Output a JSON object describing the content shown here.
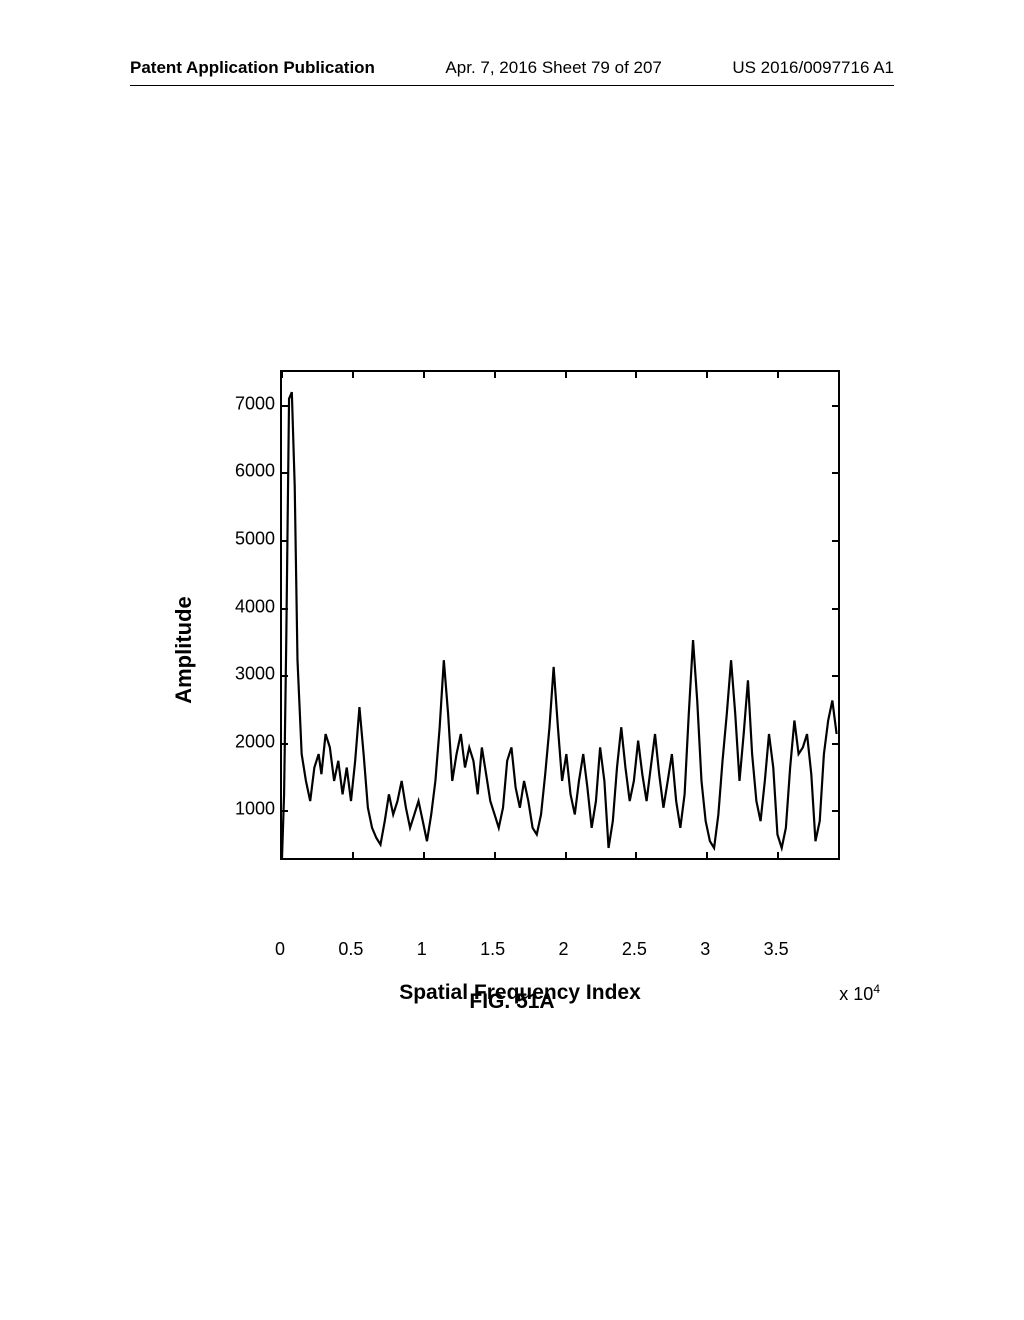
{
  "header": {
    "left": "Patent Application Publication",
    "center": "Apr. 7, 2016  Sheet 79 of 207",
    "right": "US 2016/0097716 A1"
  },
  "chart": {
    "type": "line",
    "y_label": "Amplitude",
    "x_label": "Spatial Frequency Index",
    "x_multiplier": "x 10",
    "x_multiplier_sup": "4",
    "y_ticks": [
      1000,
      2000,
      3000,
      4000,
      5000,
      6000,
      7000
    ],
    "x_ticks": [
      0,
      0.5,
      1,
      1.5,
      2,
      2.5,
      3,
      3.5
    ],
    "y_range": [
      250,
      7500
    ],
    "x_range": [
      0,
      3.95
    ],
    "line_color": "#000000",
    "line_width": 2.2,
    "background": "#ffffff",
    "border_color": "#000000",
    "data": [
      [
        0,
        250
      ],
      [
        0.015,
        1200
      ],
      [
        0.03,
        3500
      ],
      [
        0.05,
        7100
      ],
      [
        0.07,
        7200
      ],
      [
        0.09,
        5800
      ],
      [
        0.11,
        3200
      ],
      [
        0.14,
        1800
      ],
      [
        0.17,
        1400
      ],
      [
        0.2,
        1100
      ],
      [
        0.23,
        1600
      ],
      [
        0.26,
        1800
      ],
      [
        0.28,
        1500
      ],
      [
        0.31,
        2100
      ],
      [
        0.34,
        1900
      ],
      [
        0.37,
        1400
      ],
      [
        0.4,
        1700
      ],
      [
        0.43,
        1200
      ],
      [
        0.46,
        1600
      ],
      [
        0.49,
        1100
      ],
      [
        0.52,
        1700
      ],
      [
        0.55,
        2500
      ],
      [
        0.58,
        1800
      ],
      [
        0.61,
        1000
      ],
      [
        0.64,
        700
      ],
      [
        0.67,
        550
      ],
      [
        0.7,
        450
      ],
      [
        0.73,
        800
      ],
      [
        0.76,
        1200
      ],
      [
        0.79,
        900
      ],
      [
        0.82,
        1100
      ],
      [
        0.85,
        1400
      ],
      [
        0.88,
        1000
      ],
      [
        0.91,
        700
      ],
      [
        0.94,
        900
      ],
      [
        0.97,
        1100
      ],
      [
        1.0,
        800
      ],
      [
        1.03,
        500
      ],
      [
        1.06,
        900
      ],
      [
        1.09,
        1400
      ],
      [
        1.12,
        2200
      ],
      [
        1.15,
        3200
      ],
      [
        1.18,
        2400
      ],
      [
        1.21,
        1400
      ],
      [
        1.24,
        1800
      ],
      [
        1.27,
        2100
      ],
      [
        1.3,
        1600
      ],
      [
        1.33,
        1900
      ],
      [
        1.36,
        1700
      ],
      [
        1.39,
        1200
      ],
      [
        1.42,
        1900
      ],
      [
        1.45,
        1500
      ],
      [
        1.48,
        1100
      ],
      [
        1.51,
        900
      ],
      [
        1.54,
        700
      ],
      [
        1.57,
        1000
      ],
      [
        1.6,
        1700
      ],
      [
        1.63,
        1900
      ],
      [
        1.66,
        1300
      ],
      [
        1.69,
        1000
      ],
      [
        1.72,
        1400
      ],
      [
        1.75,
        1100
      ],
      [
        1.78,
        700
      ],
      [
        1.81,
        600
      ],
      [
        1.84,
        900
      ],
      [
        1.87,
        1500
      ],
      [
        1.9,
        2200
      ],
      [
        1.93,
        3100
      ],
      [
        1.96,
        2200
      ],
      [
        1.99,
        1400
      ],
      [
        2.02,
        1800
      ],
      [
        2.05,
        1200
      ],
      [
        2.08,
        900
      ],
      [
        2.11,
        1400
      ],
      [
        2.14,
        1800
      ],
      [
        2.17,
        1300
      ],
      [
        2.2,
        700
      ],
      [
        2.23,
        1100
      ],
      [
        2.26,
        1900
      ],
      [
        2.29,
        1400
      ],
      [
        2.32,
        400
      ],
      [
        2.35,
        800
      ],
      [
        2.38,
        1600
      ],
      [
        2.41,
        2200
      ],
      [
        2.44,
        1600
      ],
      [
        2.47,
        1100
      ],
      [
        2.5,
        1400
      ],
      [
        2.53,
        2000
      ],
      [
        2.56,
        1500
      ],
      [
        2.59,
        1100
      ],
      [
        2.62,
        1600
      ],
      [
        2.65,
        2100
      ],
      [
        2.68,
        1500
      ],
      [
        2.71,
        1000
      ],
      [
        2.74,
        1400
      ],
      [
        2.77,
        1800
      ],
      [
        2.8,
        1100
      ],
      [
        2.83,
        700
      ],
      [
        2.86,
        1200
      ],
      [
        2.89,
        2400
      ],
      [
        2.92,
        3500
      ],
      [
        2.95,
        2600
      ],
      [
        2.98,
        1400
      ],
      [
        3.01,
        800
      ],
      [
        3.04,
        500
      ],
      [
        3.07,
        400
      ],
      [
        3.1,
        900
      ],
      [
        3.13,
        1700
      ],
      [
        3.16,
        2400
      ],
      [
        3.19,
        3200
      ],
      [
        3.22,
        2400
      ],
      [
        3.25,
        1400
      ],
      [
        3.28,
        2100
      ],
      [
        3.31,
        2900
      ],
      [
        3.34,
        1800
      ],
      [
        3.37,
        1100
      ],
      [
        3.4,
        800
      ],
      [
        3.43,
        1400
      ],
      [
        3.46,
        2100
      ],
      [
        3.49,
        1600
      ],
      [
        3.52,
        600
      ],
      [
        3.55,
        400
      ],
      [
        3.58,
        700
      ],
      [
        3.61,
        1600
      ],
      [
        3.64,
        2300
      ],
      [
        3.67,
        1800
      ],
      [
        3.7,
        1900
      ],
      [
        3.73,
        2100
      ],
      [
        3.76,
        1500
      ],
      [
        3.79,
        500
      ],
      [
        3.82,
        800
      ],
      [
        3.85,
        1800
      ],
      [
        3.88,
        2300
      ],
      [
        3.91,
        2600
      ],
      [
        3.94,
        2100
      ]
    ]
  },
  "caption": "FIG. 51A"
}
